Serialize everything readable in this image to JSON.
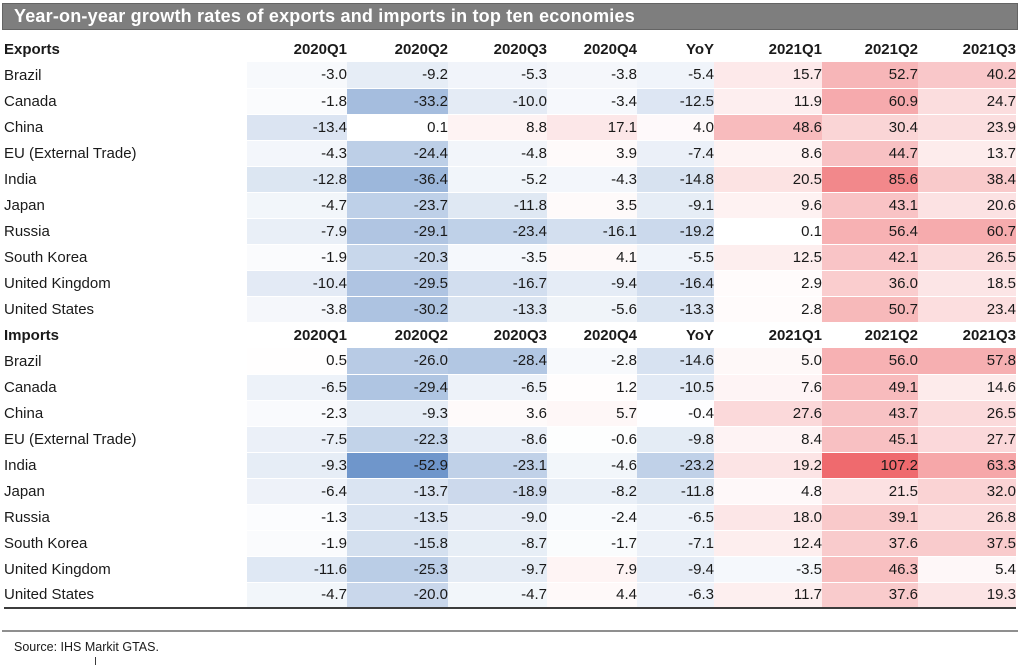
{
  "title": "Year-on-year growth rates of exports and imports in top ten economies",
  "source": {
    "text": "Source: IHS Markit GTAS."
  },
  "colors": {
    "title_bar": "#7E7E7E",
    "title_text": "#FFFFFF",
    "negative_end": "#6F96CB",
    "positive_end": "#EF6A6E",
    "neutral": "#FFFFFF",
    "table_bottom_border": "#3C3C3C",
    "footer_rule": "#8F8F8F"
  },
  "chart_data": {
    "type": "heatmap",
    "title": "Year-on-year growth rates of exports and imports in top ten economies",
    "columns": [
      "2020Q1",
      "2020Q2",
      "2020Q3",
      "2020Q4",
      "YoY",
      "2021Q1",
      "2021Q2",
      "2021Q3"
    ],
    "color_scale": {
      "min": -52.9,
      "mid": 0,
      "max": 107.2,
      "min_color": "#6F96CB",
      "mid_color": "#FFFFFF",
      "max_color": "#EF6A6E"
    },
    "sections": [
      {
        "label": "Exports",
        "rows": [
          {
            "country": "Brazil",
            "values": [
              -3.0,
              -9.2,
              -5.3,
              -3.8,
              -5.4,
              15.7,
              52.7,
              40.2
            ]
          },
          {
            "country": "Canada",
            "values": [
              -1.8,
              -33.2,
              -10.0,
              -3.4,
              -12.5,
              11.9,
              60.9,
              24.7
            ]
          },
          {
            "country": "China",
            "values": [
              -13.4,
              0.1,
              8.8,
              17.1,
              4.0,
              48.6,
              30.4,
              23.9
            ]
          },
          {
            "country": "EU (External Trade)",
            "values": [
              -4.3,
              -24.4,
              -4.8,
              3.9,
              -7.4,
              8.6,
              44.7,
              13.7
            ]
          },
          {
            "country": "India",
            "values": [
              -12.8,
              -36.4,
              -5.2,
              -4.3,
              -14.8,
              20.5,
              85.6,
              38.4
            ]
          },
          {
            "country": "Japan",
            "values": [
              -4.7,
              -23.7,
              -11.8,
              3.5,
              -9.1,
              9.6,
              43.1,
              20.6
            ]
          },
          {
            "country": "Russia",
            "values": [
              -7.9,
              -29.1,
              -23.4,
              -16.1,
              -19.2,
              0.1,
              56.4,
              60.7
            ]
          },
          {
            "country": "South Korea",
            "values": [
              -1.9,
              -20.3,
              -3.5,
              4.1,
              -5.5,
              12.5,
              42.1,
              26.5
            ]
          },
          {
            "country": "United Kingdom",
            "values": [
              -10.4,
              -29.5,
              -16.7,
              -9.4,
              -16.4,
              2.9,
              36.0,
              18.5
            ]
          },
          {
            "country": "United States",
            "values": [
              -3.8,
              -30.2,
              -13.3,
              -5.6,
              -13.3,
              2.8,
              50.7,
              23.4
            ]
          }
        ]
      },
      {
        "label": "Imports",
        "rows": [
          {
            "country": "Brazil",
            "values": [
              0.5,
              -26.0,
              -28.4,
              -2.8,
              -14.6,
              5.0,
              56.0,
              57.8
            ]
          },
          {
            "country": "Canada",
            "values": [
              -6.5,
              -29.4,
              -6.5,
              1.2,
              -10.5,
              7.6,
              49.1,
              14.6
            ]
          },
          {
            "country": "China",
            "values": [
              -2.3,
              -9.3,
              3.6,
              5.7,
              -0.4,
              27.6,
              43.7,
              26.5
            ]
          },
          {
            "country": "EU (External Trade)",
            "values": [
              -7.5,
              -22.3,
              -8.6,
              -0.6,
              -9.8,
              8.4,
              45.1,
              27.7
            ]
          },
          {
            "country": "India",
            "values": [
              -9.3,
              -52.9,
              -23.1,
              -4.6,
              -23.2,
              19.2,
              107.2,
              63.3
            ]
          },
          {
            "country": "Japan",
            "values": [
              -6.4,
              -13.7,
              -18.9,
              -8.2,
              -11.8,
              4.8,
              21.5,
              32.0
            ]
          },
          {
            "country": "Russia",
            "values": [
              -1.3,
              -13.5,
              -9.0,
              -2.4,
              -6.5,
              18.0,
              39.1,
              26.8
            ]
          },
          {
            "country": "South Korea",
            "values": [
              -1.9,
              -15.8,
              -8.7,
              -1.7,
              -7.1,
              12.4,
              37.6,
              37.5
            ]
          },
          {
            "country": "United Kingdom",
            "values": [
              -11.6,
              -25.3,
              -9.7,
              7.9,
              -9.4,
              -3.5,
              46.3,
              5.4
            ]
          },
          {
            "country": "United States",
            "values": [
              -4.7,
              -20.0,
              -4.7,
              4.4,
              -6.3,
              11.7,
              37.6,
              19.3
            ]
          }
        ]
      }
    ]
  }
}
